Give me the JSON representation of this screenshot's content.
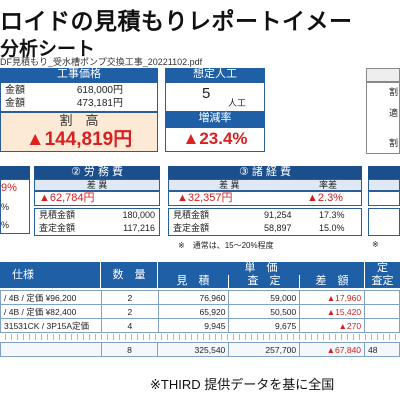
{
  "title": "ロイドの見積もりレポートイメー",
  "subtitle": "分析シート",
  "file_name": "DF見積もり_受水槽ポンプ交換工事_20221102.pdf",
  "summary": {
    "koji_header": "工事価格",
    "row1_label": "金額",
    "row1_value": "618,000円",
    "row2_label": "金額",
    "row2_value": "473,181円",
    "wari_label": "割　高",
    "wari_value": "144,819円",
    "sotei_header": "想定人工",
    "sotei_value": "5",
    "sotei_unit": "人工",
    "zogen_header": "増減率",
    "zogen_value": "23.4%",
    "right_labels": [
      "割",
      "適",
      "割"
    ]
  },
  "sections": {
    "s1": {
      "header": "",
      "pct": "9%",
      "r1": "%",
      "r2": "%"
    },
    "s2": {
      "header": "② 労 務 費",
      "sub_header": "差 異",
      "diff": "62,784円",
      "rows": [
        {
          "label": "見積金額",
          "value": "180,000"
        },
        {
          "label": "査定金額",
          "value": "117,216"
        }
      ]
    },
    "s3": {
      "header": "③ 諸 経 費",
      "col1_header": "差 異",
      "col2_header": "率差",
      "diff": "32,357円",
      "rate_diff": "2.3%",
      "rows": [
        {
          "label": "見積金額",
          "value": "91,254",
          "rate": "17.3%"
        },
        {
          "label": "査定金額",
          "value": "58,897",
          "rate": "15.0%"
        }
      ],
      "note": "※　通常は、15～20%程度"
    },
    "s4_note": "※"
  },
  "table": {
    "headers": {
      "spec": "仕様",
      "qty": "数　量",
      "unit_price": "単　価",
      "estimate": "見　積",
      "assessed": "査　定",
      "diff": "差　額",
      "right_top": "定",
      "right_sub": "査定"
    },
    "rows": [
      {
        "spec": "/ 4B / 定価 ¥96,200",
        "qty": "2",
        "est": "76,960",
        "ass": "59,000",
        "diff": "17,960",
        "right": ""
      },
      {
        "spec": "/ 4B / 定価 ¥82,400",
        "qty": "2",
        "est": "65,920",
        "ass": "50,500",
        "diff": "15,420",
        "right": ""
      },
      {
        "spec": "31531CK / 3P15A定価",
        "qty": "4",
        "est": "9,945",
        "ass": "9,675",
        "diff": "270",
        "right": ""
      },
      {
        "spec": "",
        "qty": "8",
        "est": "325,540",
        "ass": "257,700",
        "diff": "67,840",
        "right": "48"
      }
    ]
  },
  "footer": "※THIRD 提供データを基に全国"
}
